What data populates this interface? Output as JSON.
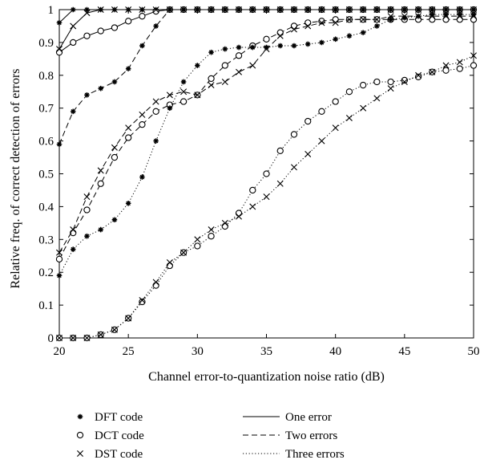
{
  "chart_data": {
    "type": "line",
    "xlabel": "Channel error-to-quantization noise ratio (dB)",
    "ylabel": "Relative freq. of correct detection of errors",
    "xlim": [
      20,
      50
    ],
    "ylim": [
      0,
      1
    ],
    "xticks": [
      20,
      25,
      30,
      35,
      40,
      45,
      50
    ],
    "yticks": [
      0,
      0.1,
      0.2,
      0.3,
      0.4,
      0.5,
      0.6,
      0.7,
      0.8,
      0.9,
      1
    ],
    "grid": false,
    "x": [
      20,
      21,
      22,
      23,
      24,
      25,
      26,
      27,
      28,
      29,
      30,
      31,
      32,
      33,
      34,
      35,
      36,
      37,
      38,
      39,
      40,
      41,
      42,
      43,
      44,
      45,
      46,
      47,
      48,
      49,
      50
    ],
    "marker_legend": [
      {
        "marker": "asterisk",
        "label": "DFT code"
      },
      {
        "marker": "circle",
        "label": "DCT code"
      },
      {
        "marker": "cross",
        "label": "DST code"
      }
    ],
    "line_legend": [
      {
        "dash": "solid",
        "label": "One error"
      },
      {
        "dash": "dashed",
        "label": "Two errors"
      },
      {
        "dash": "dotted",
        "label": "Three errors"
      }
    ],
    "series": [
      {
        "code": "DFT code",
        "errors": "One error",
        "marker": "asterisk",
        "dash": "solid",
        "values": [
          0.96,
          1,
          1,
          1,
          1,
          1,
          1,
          1,
          1,
          1,
          1,
          1,
          1,
          1,
          1,
          1,
          1,
          1,
          1,
          1,
          1,
          1,
          1,
          1,
          1,
          1,
          1,
          1,
          1,
          1,
          1
        ]
      },
      {
        "code": "DCT code",
        "errors": "One error",
        "marker": "circle",
        "dash": "solid",
        "values": [
          0.87,
          0.9,
          0.92,
          0.935,
          0.945,
          0.965,
          0.98,
          0.995,
          1,
          1,
          1,
          1,
          1,
          1,
          1,
          1,
          1,
          1,
          1,
          1,
          1,
          1,
          1,
          1,
          1,
          1,
          1,
          1,
          1,
          1,
          1
        ]
      },
      {
        "code": "DST code",
        "errors": "One error",
        "marker": "cross",
        "dash": "solid",
        "values": [
          0.88,
          0.95,
          0.99,
          1,
          1,
          1,
          1,
          1,
          1,
          1,
          1,
          1,
          1,
          1,
          1,
          1,
          1,
          1,
          1,
          1,
          1,
          1,
          1,
          1,
          1,
          1,
          1,
          1,
          1,
          1,
          1
        ]
      },
      {
        "code": "DFT code",
        "errors": "Two errors",
        "marker": "asterisk",
        "dash": "dashed",
        "values": [
          0.59,
          0.69,
          0.74,
          0.76,
          0.78,
          0.82,
          0.89,
          0.95,
          1,
          1,
          1,
          1,
          1,
          1,
          1,
          1,
          1,
          1,
          1,
          1,
          1,
          1,
          1,
          1,
          1,
          1,
          1,
          1,
          1,
          1,
          1
        ]
      },
      {
        "code": "DCT code",
        "errors": "Two errors",
        "marker": "circle",
        "dash": "dashed",
        "values": [
          0.24,
          0.32,
          0.39,
          0.47,
          0.55,
          0.61,
          0.65,
          0.69,
          0.71,
          0.72,
          0.74,
          0.79,
          0.83,
          0.86,
          0.89,
          0.91,
          0.93,
          0.95,
          0.96,
          0.965,
          0.97,
          0.97,
          0.97,
          0.97,
          0.97,
          0.97,
          0.97,
          0.97,
          0.97,
          0.97,
          0.97
        ]
      },
      {
        "code": "DST code",
        "errors": "Two errors",
        "marker": "cross",
        "dash": "dashed",
        "values": [
          0.26,
          0.33,
          0.43,
          0.51,
          0.58,
          0.64,
          0.68,
          0.72,
          0.74,
          0.75,
          0.74,
          0.77,
          0.78,
          0.81,
          0.83,
          0.88,
          0.92,
          0.94,
          0.95,
          0.96,
          0.96,
          0.97,
          0.97,
          0.97,
          0.98,
          0.98,
          0.98,
          0.98,
          0.98,
          0.98,
          0.98
        ]
      },
      {
        "code": "DFT code",
        "errors": "Three errors",
        "marker": "asterisk",
        "dash": "dotted",
        "values": [
          0.19,
          0.27,
          0.31,
          0.33,
          0.36,
          0.41,
          0.49,
          0.6,
          0.7,
          0.78,
          0.83,
          0.87,
          0.88,
          0.885,
          0.885,
          0.885,
          0.89,
          0.89,
          0.895,
          0.9,
          0.91,
          0.92,
          0.93,
          0.95,
          0.97,
          0.975,
          0.98,
          0.985,
          0.985,
          0.985,
          0.985
        ]
      },
      {
        "code": "DCT code",
        "errors": "Three errors",
        "marker": "circle",
        "dash": "dotted",
        "values": [
          0,
          0,
          0,
          0.01,
          0.025,
          0.06,
          0.11,
          0.16,
          0.22,
          0.26,
          0.28,
          0.31,
          0.34,
          0.38,
          0.45,
          0.5,
          0.57,
          0.62,
          0.66,
          0.69,
          0.72,
          0.75,
          0.77,
          0.78,
          0.78,
          0.785,
          0.795,
          0.81,
          0.815,
          0.82,
          0.83
        ]
      },
      {
        "code": "DST code",
        "errors": "Three errors",
        "marker": "cross",
        "dash": "dotted",
        "values": [
          0,
          0,
          0,
          0.01,
          0.025,
          0.06,
          0.115,
          0.17,
          0.23,
          0.26,
          0.3,
          0.33,
          0.35,
          0.37,
          0.4,
          0.43,
          0.47,
          0.52,
          0.56,
          0.6,
          0.64,
          0.67,
          0.7,
          0.73,
          0.76,
          0.78,
          0.8,
          0.81,
          0.83,
          0.84,
          0.86
        ]
      }
    ]
  }
}
